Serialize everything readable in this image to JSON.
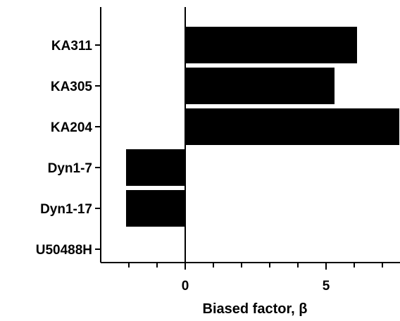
{
  "chart_data": {
    "type": "bar",
    "orientation": "horizontal",
    "categories": [
      "KA311",
      "KA305",
      "KA204",
      "Dyn1-7",
      "Dyn1-17",
      "U50488H"
    ],
    "values": [
      6.1,
      5.3,
      7.6,
      -2.1,
      -2.1,
      0
    ],
    "xlabel": "Biased factor, β",
    "ylabel": "",
    "xticks": [
      "0",
      "5"
    ],
    "xlim": [
      -3,
      7.6
    ],
    "bar_color": "#000000",
    "grid": false,
    "legend": "none"
  }
}
